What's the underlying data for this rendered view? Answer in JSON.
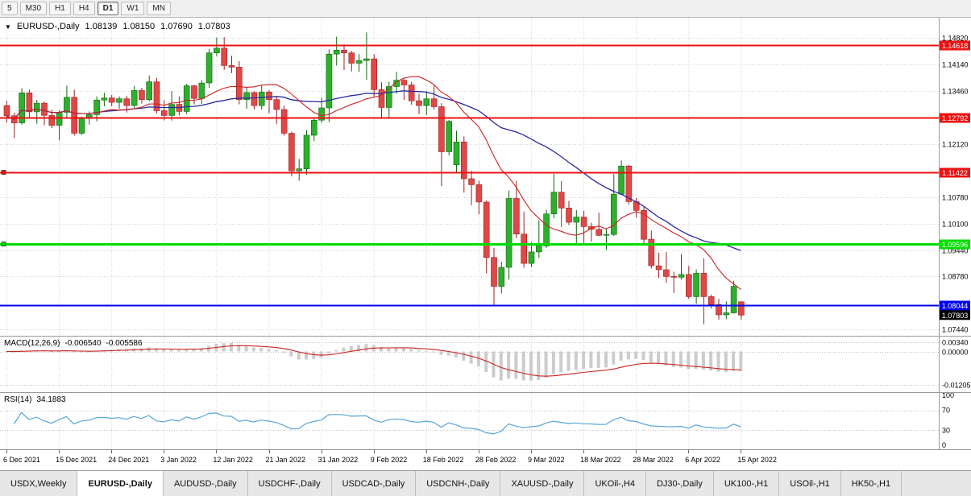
{
  "toolbar": {
    "timeframes": [
      {
        "label": "5",
        "active": false
      },
      {
        "label": "M30",
        "active": false
      },
      {
        "label": "H1",
        "active": false
      },
      {
        "label": "H4",
        "active": false
      },
      {
        "label": "D1",
        "active": true
      },
      {
        "label": "W1",
        "active": false
      },
      {
        "label": "MN",
        "active": false
      }
    ]
  },
  "chart_header": {
    "marker": "▼",
    "symbol": "EURUSD-,Daily",
    "open": "1.08139",
    "high": "1.08150",
    "low": "1.07690",
    "close": "1.07803"
  },
  "chart_data": {
    "type": "candlestick",
    "symbol": "EURUSD",
    "timeframe": "Daily",
    "price_axis": {
      "min": 1.0726,
      "max": 1.1532,
      "grid_labels": [
        "1.14820",
        "1.14140",
        "1.13460",
        "1.12120",
        "1.10780",
        "1.10100",
        "1.09440",
        "1.08780",
        "1.07440"
      ]
    },
    "levels": [
      {
        "price": 1.14618,
        "label": "1.14618",
        "color": "#ee1111",
        "width": 2,
        "handle": false,
        "type": "resistance"
      },
      {
        "price": 1.12792,
        "label": "1.12792",
        "color": "#ee1111",
        "width": 2,
        "handle": false,
        "type": "resistance"
      },
      {
        "price": 1.11422,
        "label": "1.11422",
        "color": "#ee1111",
        "width": 2,
        "handle": true,
        "type": "resistance"
      },
      {
        "price": 1.09596,
        "label": "1.09596",
        "color": "#00dd00",
        "width": 3,
        "handle": true,
        "type": "support"
      },
      {
        "price": 1.08044,
        "label": "1.08044",
        "color": "#0000ee",
        "width": 2,
        "handle": false,
        "type": "support"
      }
    ],
    "current_price": {
      "price": 1.07803,
      "label": "1.07803",
      "color": "#000000"
    },
    "date_ticks": [
      {
        "i": 0,
        "label": "6 Dec 2021"
      },
      {
        "i": 7,
        "label": "15 Dec 2021"
      },
      {
        "i": 14,
        "label": "24 Dec 2021"
      },
      {
        "i": 21,
        "label": "3 Jan 2022"
      },
      {
        "i": 28,
        "label": "12 Jan 2022"
      },
      {
        "i": 35,
        "label": "21 Jan 2022"
      },
      {
        "i": 42,
        "label": "31 Jan 2022"
      },
      {
        "i": 49,
        "label": "9 Feb 2022"
      },
      {
        "i": 56,
        "label": "18 Feb 2022"
      },
      {
        "i": 63,
        "label": "28 Feb 2022"
      },
      {
        "i": 70,
        "label": "9 Mar 2022"
      },
      {
        "i": 77,
        "label": "18 Mar 2022"
      },
      {
        "i": 84,
        "label": "28 Mar 2022"
      },
      {
        "i": 91,
        "label": "6 Apr 2022"
      },
      {
        "i": 98,
        "label": "15 Apr 2022"
      }
    ],
    "ma_fast_period": 13,
    "ma_slow_period": 30,
    "colors": {
      "up": "#116611",
      "up_fill": "#2eaf2e",
      "down": "#992222",
      "down_fill": "#e04848",
      "ma_fast": "#cc2222",
      "ma_slow": "#2929a3",
      "grid": "#d4d4d4",
      "histogram": "#cccccc",
      "rsi": "#58a6d8"
    },
    "candles": [
      [
        1.131,
        1.1322,
        1.1267,
        1.1284
      ],
      [
        1.1284,
        1.1292,
        1.1228,
        1.1266
      ],
      [
        1.1266,
        1.1354,
        1.1262,
        1.1342
      ],
      [
        1.1342,
        1.135,
        1.128,
        1.1294
      ],
      [
        1.1294,
        1.1324,
        1.1264,
        1.1316
      ],
      [
        1.1316,
        1.132,
        1.126,
        1.1285
      ],
      [
        1.1285,
        1.13,
        1.1253,
        1.126
      ],
      [
        1.126,
        1.1298,
        1.1222,
        1.1293
      ],
      [
        1.1293,
        1.136,
        1.128,
        1.1331
      ],
      [
        1.1331,
        1.135,
        1.1234,
        1.124
      ],
      [
        1.124,
        1.1282,
        1.1236,
        1.1278
      ],
      [
        1.1278,
        1.1295,
        1.1262,
        1.1287
      ],
      [
        1.1287,
        1.1333,
        1.127,
        1.1324
      ],
      [
        1.1324,
        1.1342,
        1.1308,
        1.1329
      ],
      [
        1.1329,
        1.1337,
        1.1308,
        1.1318
      ],
      [
        1.1318,
        1.1333,
        1.1302,
        1.1327
      ],
      [
        1.1327,
        1.1335,
        1.1292,
        1.131
      ],
      [
        1.131,
        1.136,
        1.1304,
        1.1348
      ],
      [
        1.1348,
        1.1355,
        1.1315,
        1.1325
      ],
      [
        1.1325,
        1.1386,
        1.1321,
        1.137
      ],
      [
        1.137,
        1.138,
        1.129,
        1.1297
      ],
      [
        1.1297,
        1.1324,
        1.1272,
        1.1285
      ],
      [
        1.1285,
        1.1347,
        1.1272,
        1.1313
      ],
      [
        1.1313,
        1.1333,
        1.1285,
        1.1295
      ],
      [
        1.1295,
        1.1365,
        1.1288,
        1.136
      ],
      [
        1.136,
        1.1362,
        1.1313,
        1.1328
      ],
      [
        1.1328,
        1.1374,
        1.1314,
        1.1367
      ],
      [
        1.1367,
        1.1453,
        1.1355,
        1.1443
      ],
      [
        1.1443,
        1.1482,
        1.1435,
        1.1455
      ],
      [
        1.1455,
        1.1483,
        1.14,
        1.1411
      ],
      [
        1.1411,
        1.1436,
        1.1392,
        1.1407
      ],
      [
        1.1407,
        1.1422,
        1.1313,
        1.1325
      ],
      [
        1.1325,
        1.1357,
        1.1302,
        1.1343
      ],
      [
        1.1343,
        1.1346,
        1.13,
        1.131
      ],
      [
        1.131,
        1.136,
        1.13,
        1.1344
      ],
      [
        1.1344,
        1.1349,
        1.129,
        1.1325
      ],
      [
        1.1325,
        1.1332,
        1.1263,
        1.13
      ],
      [
        1.13,
        1.131,
        1.1234,
        1.124
      ],
      [
        1.124,
        1.1244,
        1.1131,
        1.1145
      ],
      [
        1.1145,
        1.1175,
        1.112,
        1.115
      ],
      [
        1.115,
        1.1248,
        1.1135,
        1.1235
      ],
      [
        1.1235,
        1.128,
        1.122,
        1.1273
      ],
      [
        1.1273,
        1.133,
        1.1266,
        1.1304
      ],
      [
        1.1304,
        1.1452,
        1.1268,
        1.144
      ],
      [
        1.144,
        1.1484,
        1.1411,
        1.145
      ],
      [
        1.145,
        1.1465,
        1.14,
        1.1443
      ],
      [
        1.1443,
        1.1448,
        1.1396,
        1.1417
      ],
      [
        1.1417,
        1.144,
        1.1395,
        1.1424
      ],
      [
        1.1424,
        1.1495,
        1.1375,
        1.1428
      ],
      [
        1.1428,
        1.144,
        1.133,
        1.135
      ],
      [
        1.135,
        1.1369,
        1.128,
        1.1305
      ],
      [
        1.1305,
        1.137,
        1.1279,
        1.1358
      ],
      [
        1.1358,
        1.1395,
        1.134,
        1.1374
      ],
      [
        1.1374,
        1.138,
        1.1324,
        1.1362
      ],
      [
        1.1362,
        1.137,
        1.1312,
        1.1322
      ],
      [
        1.1322,
        1.134,
        1.1288,
        1.131
      ],
      [
        1.131,
        1.1346,
        1.1286,
        1.1327
      ],
      [
        1.1327,
        1.136,
        1.13,
        1.1307
      ],
      [
        1.1307,
        1.1316,
        1.1106,
        1.1193
      ],
      [
        1.1193,
        1.1274,
        1.1184,
        1.127
      ],
      [
        1.116,
        1.1246,
        1.114,
        1.1218
      ],
      [
        1.1218,
        1.1232,
        1.109,
        1.1125
      ],
      [
        1.1125,
        1.1145,
        1.1058,
        1.111
      ],
      [
        1.111,
        1.112,
        1.1035,
        1.1066
      ],
      [
        1.1066,
        1.107,
        1.0886,
        1.0926
      ],
      [
        1.0926,
        1.095,
        1.0806,
        1.0853
      ],
      [
        1.0853,
        1.0915,
        1.0835,
        1.0901
      ],
      [
        1.0901,
        1.1095,
        1.087,
        1.1075
      ],
      [
        1.1075,
        1.112,
        1.0975,
        1.0985
      ],
      [
        1.0985,
        1.1042,
        1.09,
        1.0911
      ],
      [
        1.0911,
        1.0965,
        1.0902,
        1.094
      ],
      [
        1.094,
        1.102,
        1.0925,
        1.0955
      ],
      [
        1.0955,
        1.1047,
        1.095,
        1.1036
      ],
      [
        1.1036,
        1.1137,
        1.1025,
        1.1091
      ],
      [
        1.1091,
        1.1119,
        1.1003,
        1.1051
      ],
      [
        1.1051,
        1.1069,
        1.1008,
        1.1015
      ],
      [
        1.1015,
        1.1046,
        1.0961,
        1.1028
      ],
      [
        1.1028,
        1.1044,
        1.0963,
        1.1004
      ],
      [
        1.1004,
        1.1014,
        1.0966,
        1.0997
      ],
      [
        1.0997,
        1.1039,
        1.098,
        1.0982
      ],
      [
        1.0982,
        1.1,
        1.0945,
        1.0984
      ],
      [
        1.0984,
        1.1137,
        1.098,
        1.1086
      ],
      [
        1.1086,
        1.1171,
        1.1084,
        1.1157
      ],
      [
        1.1157,
        1.116,
        1.106,
        1.1067
      ],
      [
        1.1067,
        1.1076,
        1.1027,
        1.1045
      ],
      [
        1.1045,
        1.1055,
        1.096,
        1.0972
      ],
      [
        1.0972,
        1.0994,
        1.0898,
        1.0905
      ],
      [
        1.0905,
        1.0938,
        1.0874,
        1.0895
      ],
      [
        1.0895,
        1.094,
        1.0862,
        1.0878
      ],
      [
        1.0878,
        1.089,
        1.0836,
        1.0876
      ],
      [
        1.0876,
        1.0934,
        1.087,
        1.0883
      ],
      [
        1.0883,
        1.0905,
        1.0821,
        1.0827
      ],
      [
        1.0827,
        1.0896,
        1.0809,
        1.0886
      ],
      [
        1.0886,
        1.0924,
        1.0757,
        1.0827
      ],
      [
        1.0827,
        1.0832,
        1.0797,
        1.0807
      ],
      [
        1.0807,
        1.0821,
        1.0769,
        1.0781
      ],
      [
        1.0781,
        1.0815,
        1.077,
        1.0786
      ],
      [
        1.0786,
        1.0867,
        1.0784,
        1.0853
      ],
      [
        1.08139,
        1.0815,
        1.0769,
        1.07803
      ]
    ]
  },
  "macd_panel": {
    "title": "MACD(12,26,9)",
    "value1": "-0.006540",
    "value2": "-0.005586",
    "axis_labels": [
      "0.00340",
      "0.00000",
      "-0.01205"
    ],
    "axis_values": [
      0.0034,
      0,
      -0.01205
    ],
    "range": {
      "max": 0.0045,
      "min": -0.0135
    }
  },
  "rsi_panel": {
    "title": "RSI(14)",
    "value": "34.1883",
    "axis_labels": [
      "100",
      "70",
      "30",
      "0"
    ],
    "axis_values": [
      100,
      70,
      30,
      0
    ],
    "guides": [
      70,
      30
    ]
  },
  "tabs": [
    {
      "label": "USDX,Weekly",
      "active": false
    },
    {
      "label": "EURUSD-,Daily",
      "active": true
    },
    {
      "label": "AUDUSD-,Daily",
      "active": false
    },
    {
      "label": "USDCHF-,Daily",
      "active": false
    },
    {
      "label": "USDCAD-,Daily",
      "active": false
    },
    {
      "label": "USDCNH-,Daily",
      "active": false
    },
    {
      "label": "XAUUSD-,Daily",
      "active": false
    },
    {
      "label": "UKOil-,H4",
      "active": false
    },
    {
      "label": "DJ30-,Daily",
      "active": false
    },
    {
      "label": "UK100-,H1",
      "active": false
    },
    {
      "label": "USOil-,H1",
      "active": false
    },
    {
      "label": "HK50-,H1",
      "active": false
    }
  ]
}
